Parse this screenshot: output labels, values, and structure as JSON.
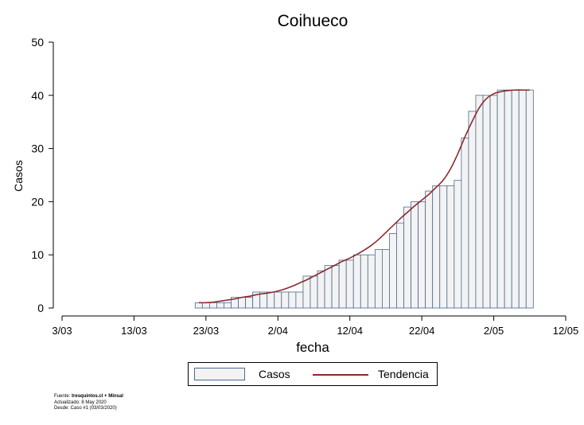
{
  "chart_data": {
    "type": "bar",
    "title": "Coihueco",
    "xlabel": "fecha",
    "ylabel": "Casos",
    "ylim": [
      0,
      50
    ],
    "yticks": [
      0,
      10,
      20,
      30,
      40,
      50
    ],
    "xlim": [
      "2020-03-03",
      "2020-05-12"
    ],
    "xticks": [
      "3/03",
      "13/03",
      "23/03",
      "2/04",
      "12/04",
      "22/04",
      "2/05",
      "12/05"
    ],
    "x": [
      "2020-03-22",
      "2020-03-23",
      "2020-03-24",
      "2020-03-25",
      "2020-03-26",
      "2020-03-27",
      "2020-03-28",
      "2020-03-29",
      "2020-03-30",
      "2020-03-31",
      "2020-04-01",
      "2020-04-02",
      "2020-04-03",
      "2020-04-04",
      "2020-04-05",
      "2020-04-06",
      "2020-04-07",
      "2020-04-08",
      "2020-04-09",
      "2020-04-10",
      "2020-04-11",
      "2020-04-12",
      "2020-04-13",
      "2020-04-14",
      "2020-04-15",
      "2020-04-16",
      "2020-04-17",
      "2020-04-18",
      "2020-04-19",
      "2020-04-20",
      "2020-04-21",
      "2020-04-22",
      "2020-04-23",
      "2020-04-24",
      "2020-04-25",
      "2020-04-26",
      "2020-04-27",
      "2020-04-28",
      "2020-04-29",
      "2020-04-30",
      "2020-05-01",
      "2020-05-02",
      "2020-05-03",
      "2020-05-04",
      "2020-05-05",
      "2020-05-06",
      "2020-05-07"
    ],
    "series": [
      {
        "name": "Casos",
        "values": [
          1,
          1,
          1,
          1,
          1,
          2,
          2,
          2,
          3,
          3,
          3,
          3,
          3,
          3,
          3,
          6,
          6,
          7,
          8,
          8,
          9,
          9,
          10,
          10,
          10,
          11,
          11,
          14,
          16,
          19,
          20,
          20,
          22,
          23,
          23,
          23,
          24,
          32,
          37,
          40,
          40,
          40,
          41,
          41,
          41,
          41,
          41
        ],
        "color": "#4a6a8f",
        "fill": "#f3f3f3"
      },
      {
        "name": "Tendencia",
        "values": [
          1,
          1,
          1.1,
          1.3,
          1.5,
          1.7,
          2,
          2.2,
          2.5,
          2.7,
          2.9,
          3.2,
          3.6,
          4.1,
          4.7,
          5.3,
          6,
          6.7,
          7.4,
          8.1,
          8.8,
          9.4,
          10.1,
          10.9,
          11.8,
          12.9,
          14.2,
          15.5,
          16.8,
          18,
          19.2,
          20.3,
          21.4,
          22.7,
          24.1,
          26.2,
          29,
          32.2,
          35.1,
          37.7,
          39.4,
          40.3,
          40.7,
          40.9,
          41,
          41,
          41
        ],
        "color": "#8b2a2e"
      }
    ],
    "legend": {
      "position": "bottom",
      "entries": [
        "Casos",
        "Tendencia"
      ]
    }
  },
  "source": {
    "label": "Fuente:",
    "name": "tresquintos.cl + Minsal",
    "updated": "Actualizado: 8 May 2020",
    "since": "Desde: Caso #1  (03/03/2020)"
  }
}
